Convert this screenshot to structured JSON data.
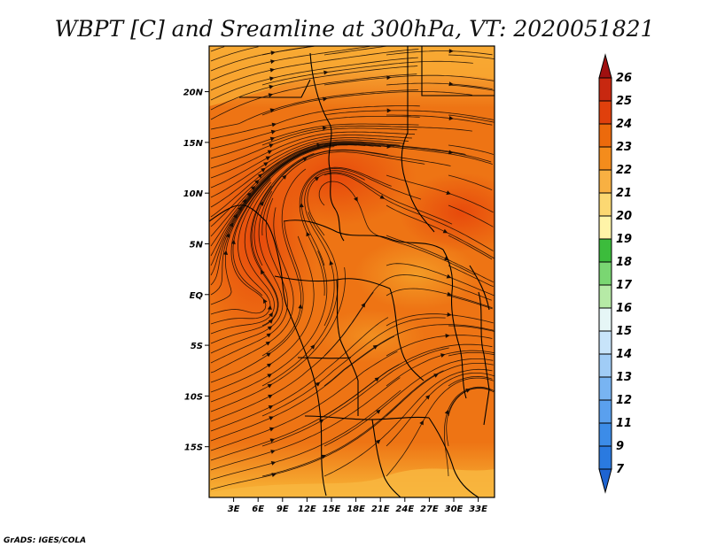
{
  "chart_data": {
    "type": "heatmap",
    "title": "WBPT [C] and Sreamline at 300hPa, VT: 2020051821",
    "variable": "Wet-bulb potential temperature (C) with 300hPa streamlines",
    "level": "300hPa",
    "valid_time": "2020051821",
    "xlabel": "",
    "ylabel": "",
    "lon_range": [
      0,
      35
    ],
    "lat_range": [
      -20,
      24.5
    ],
    "x_ticks": [
      "3E",
      "6E",
      "9E",
      "12E",
      "15E",
      "18E",
      "21E",
      "24E",
      "27E",
      "30E",
      "33E"
    ],
    "x_tick_values": [
      3,
      6,
      9,
      12,
      15,
      18,
      21,
      24,
      27,
      30,
      33
    ],
    "y_ticks": [
      "20N",
      "15N",
      "10N",
      "5N",
      "EQ",
      "5S",
      "10S",
      "15S"
    ],
    "y_tick_values": [
      20,
      15,
      10,
      5,
      0,
      -5,
      -10,
      -15
    ],
    "colorbar": {
      "labels": [
        "7",
        "9",
        "11",
        "12",
        "13",
        "14",
        "15",
        "16",
        "17",
        "18",
        "19",
        "20",
        "21",
        "22",
        "23",
        "24",
        "25",
        "26"
      ],
      "colors": [
        "#1e64d2",
        "#2a7ae0",
        "#3c8ce8",
        "#5aa0ee",
        "#78b4f2",
        "#a0ccf6",
        "#c8e4fa",
        "#e6f6f6",
        "#b6eaa6",
        "#7ad672",
        "#3cbc3c",
        "#fff4a8",
        "#fcd872",
        "#f8b042",
        "#f48c1c",
        "#ec6a0c",
        "#e0400c",
        "#c82810",
        "#a01010"
      ]
    },
    "field_summary": {
      "dominant_range": "22-24",
      "max_region": "23-24 over western coast near 0-10N and central band",
      "min_region": "20-21 in far north near 22-24N and far south near 18-20S"
    },
    "credit": "GrADS: IGES/COLA"
  }
}
